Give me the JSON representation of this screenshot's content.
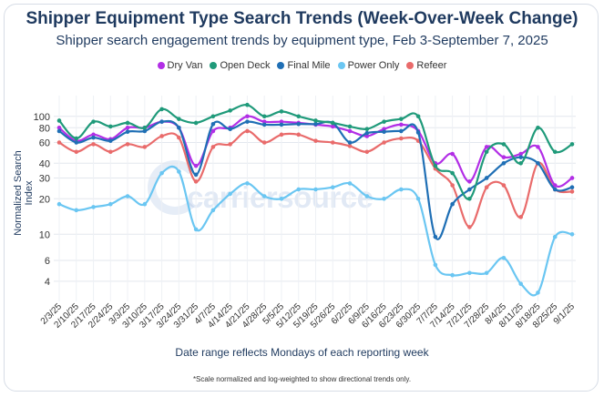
{
  "title": "Shipper Equipment Type Search Trends (Week-Over-Week Change)",
  "subtitle": "Shipper search engagement trends by equipment type, Feb 3-September 7, 2025",
  "watermark": "carriersource",
  "xlabel": "Date range reflects Mondays of each reporting week",
  "ylabel": "Normalized Search Index",
  "footnote": "*Scale normalized and log-weighted to show directional trends only.",
  "chart_data": {
    "type": "line",
    "y_scale": "log",
    "ylim": [
      3,
      130
    ],
    "y_ticks": [
      4,
      6,
      10,
      20,
      30,
      40,
      60,
      80,
      100
    ],
    "grid": true,
    "legend": "top-center",
    "categories": [
      "2/3/25",
      "2/10/25",
      "2/17/25",
      "2/24/25",
      "3/3/25",
      "3/10/25",
      "3/17/25",
      "3/24/25",
      "3/31/25",
      "4/7/25",
      "4/14/25",
      "4/21/25",
      "4/28/25",
      "5/5/25",
      "5/12/25",
      "5/19/25",
      "5/26/25",
      "6/2/25",
      "6/9/25",
      "6/16/25",
      "6/23/25",
      "6/30/25",
      "7/7/25",
      "7/14/25",
      "7/21/25",
      "7/28/25",
      "8/4/25",
      "8/11/25",
      "8/18/25",
      "8/25/25",
      "9/1/25"
    ],
    "series": [
      {
        "name": "Dry Van",
        "color": "#b22ee6",
        "values": [
          80,
          62,
          70,
          64,
          80,
          80,
          90,
          80,
          38,
          75,
          80,
          100,
          90,
          90,
          88,
          85,
          82,
          75,
          68,
          78,
          85,
          75,
          40,
          48,
          28,
          55,
          45,
          48,
          55,
          26,
          30
        ]
      },
      {
        "name": "Open Deck",
        "color": "#1f9a7a",
        "values": [
          92,
          65,
          90,
          82,
          88,
          80,
          115,
          95,
          88,
          100,
          112,
          125,
          100,
          110,
          100,
          92,
          88,
          82,
          78,
          90,
          95,
          100,
          38,
          33,
          20,
          50,
          58,
          40,
          80,
          50,
          58
        ]
      },
      {
        "name": "Final Mile",
        "color": "#1f6fb5",
        "values": [
          75,
          60,
          66,
          62,
          74,
          75,
          90,
          80,
          32,
          86,
          78,
          90,
          85,
          85,
          86,
          86,
          88,
          60,
          72,
          74,
          75,
          73,
          9.5,
          18,
          24,
          30,
          40,
          45,
          40,
          24,
          25
        ]
      },
      {
        "name": "Power Only",
        "color": "#6ac6f2",
        "values": [
          18,
          16,
          17,
          18,
          21,
          18,
          33,
          34,
          11,
          16,
          22,
          27,
          21,
          20,
          24,
          24,
          25,
          27,
          21,
          20,
          24,
          20,
          5.5,
          4.5,
          4.7,
          4.7,
          6.3,
          3.8,
          3.2,
          9.5,
          10
        ]
      },
      {
        "name": "Refeer",
        "color": "#e96b6b",
        "values": [
          60,
          50,
          58,
          50,
          58,
          55,
          68,
          66,
          28,
          55,
          58,
          75,
          60,
          70,
          70,
          62,
          60,
          56,
          50,
          60,
          65,
          62,
          36,
          26,
          11.5,
          25,
          26,
          14,
          40,
          24,
          23
        ]
      }
    ]
  }
}
